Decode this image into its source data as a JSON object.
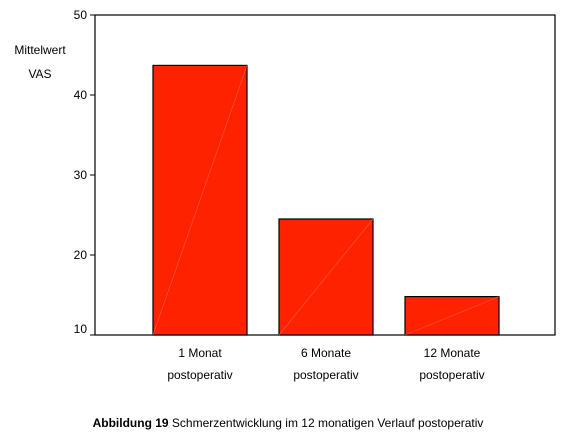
{
  "chart_data": {
    "type": "bar",
    "categories": [
      [
        "1 Monat",
        "postoperativ"
      ],
      [
        "6 Monate",
        "postoperativ"
      ],
      [
        "12 Monate",
        "postoperativ"
      ]
    ],
    "values": [
      43.7,
      24.5,
      14.8
    ],
    "ylabel": [
      "Mittelwert",
      "VAS"
    ],
    "ylim": [
      10,
      50
    ],
    "yticks": [
      10,
      20,
      30,
      40,
      50
    ],
    "bar_color": "#ff2200",
    "grid": false
  },
  "caption": {
    "label": "Abbildung 19",
    "text": " Schmerzentwicklung im 12 monatigen Verlauf postoperativ"
  }
}
